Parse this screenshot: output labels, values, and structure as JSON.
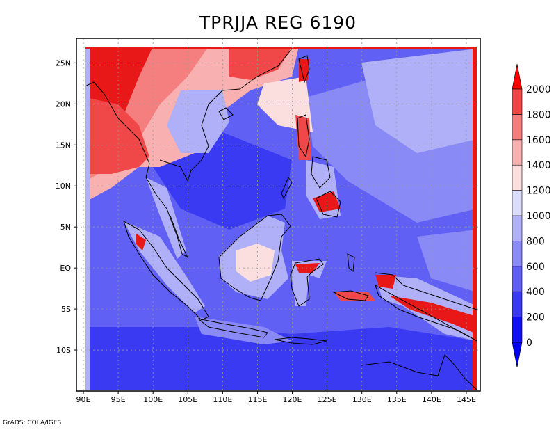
{
  "title": "TPRJJA REG 6190",
  "credit": "GrADS: COLA/IGES",
  "map": {
    "lon_range": [
      89,
      147
    ],
    "lat_range": [
      -15,
      28
    ],
    "lon_ticks": [
      "90E",
      "95E",
      "100E",
      "105E",
      "110E",
      "115E",
      "120E",
      "125E",
      "130E",
      "135E",
      "140E",
      "145E"
    ],
    "lon_tick_values": [
      90,
      95,
      100,
      105,
      110,
      115,
      120,
      125,
      130,
      135,
      140,
      145
    ],
    "lat_ticks": [
      "10S",
      "5S",
      "EQ",
      "5N",
      "10N",
      "15N",
      "20N",
      "25N"
    ],
    "lat_tick_values": [
      -10,
      -5,
      0,
      5,
      10,
      15,
      20,
      25
    ],
    "grid": true
  },
  "colorbar": {
    "levels": [
      "0",
      "200",
      "400",
      "600",
      "800",
      "1000",
      "1200",
      "1400",
      "1600",
      "1800",
      "2000"
    ],
    "colors": [
      "#1010f0",
      "#3a3af2",
      "#6060f4",
      "#8a8af6",
      "#b0b0f8",
      "#dcdcfb",
      "#fbdede",
      "#f9b0b0",
      "#f57e7e",
      "#f04848",
      "#e81818"
    ],
    "under_color": "#0000ee",
    "over_color": "#ff0000"
  }
}
